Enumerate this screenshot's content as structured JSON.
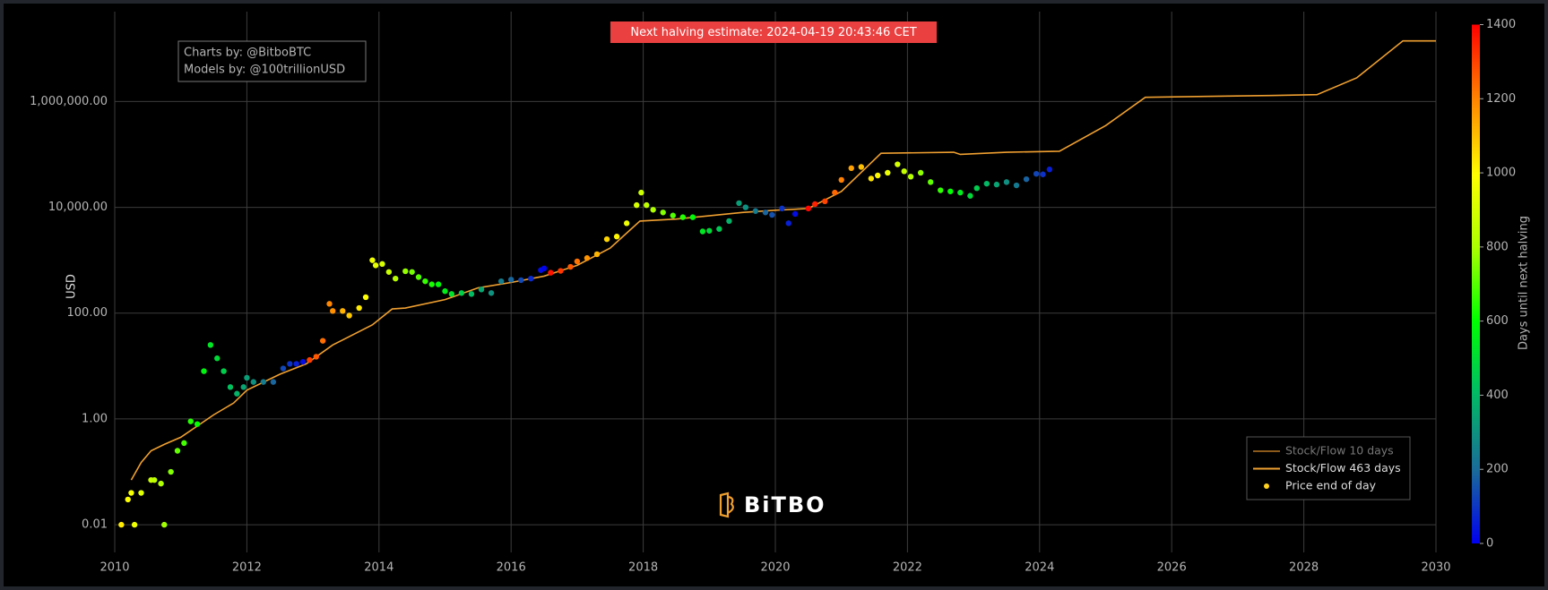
{
  "chart_data": {
    "type": "scatter",
    "annotation": "Next halving estimate: 2024-04-19 20:43:46 CET",
    "credits": [
      "Charts by: @BitboBTC",
      "Models by: @100trillionUSD"
    ],
    "logo": "BiTBO",
    "ylabel": "USD",
    "xlim": [
      2010,
      2030
    ],
    "xticks": [
      2010,
      2012,
      2014,
      2016,
      2018,
      2020,
      2022,
      2024,
      2026,
      2028,
      2030
    ],
    "ylim": [
      0.003,
      50000000
    ],
    "log_y": true,
    "yticks": [
      {
        "value": 0.01,
        "label": "0.01"
      },
      {
        "value": 1,
        "label": "1.00"
      },
      {
        "value": 100,
        "label": "100.00"
      },
      {
        "value": 10000,
        "label": "10,000.00"
      },
      {
        "value": 1000000,
        "label": "1,000,000.00"
      }
    ],
    "grid": true,
    "legend_position": "bottom-right",
    "colorbar": {
      "title": "Days until next halving",
      "clim": [
        0,
        1400
      ],
      "ticks": [
        0,
        200,
        400,
        600,
        800,
        1000,
        1200,
        1400
      ],
      "colorscale": [
        [
          0,
          "#0000ee"
        ],
        [
          0.14,
          "#1a6a9a"
        ],
        [
          0.3,
          "#00c060"
        ],
        [
          0.43,
          "#00ff00"
        ],
        [
          0.57,
          "#aaff00"
        ],
        [
          0.71,
          "#ffff00"
        ],
        [
          0.86,
          "#ff8000"
        ],
        [
          1,
          "#ff0000"
        ]
      ]
    },
    "series": [
      {
        "name": "Stock/Flow 10 days",
        "type": "line",
        "color": "#8b5a1a",
        "visible": false
      },
      {
        "name": "Stock/Flow 463 days",
        "type": "line",
        "color": "#f0a030",
        "x": [
          2010.25,
          2010.4,
          2010.55,
          2010.75,
          2011.0,
          2011.5,
          2011.8,
          2012.0,
          2012.5,
          2012.9,
          2013.3,
          2013.9,
          2014.2,
          2014.4,
          2015.0,
          2015.5,
          2016.0,
          2016.5,
          2017.0,
          2017.5,
          2017.95,
          2018.5,
          2019.5,
          2020.0,
          2020.5,
          2021.0,
          2021.6,
          2022.7,
          2022.8,
          2023.5,
          2024.3,
          2025.0,
          2025.6,
          2026.5,
          2027.5,
          2028.2,
          2028.8,
          2029.5,
          2030.0
        ],
        "values": [
          0.07,
          0.15,
          0.25,
          0.33,
          0.45,
          1.2,
          2,
          3.5,
          7,
          11,
          25,
          60,
          120,
          125,
          180,
          300,
          380,
          500,
          800,
          1700,
          5500,
          6000,
          8000,
          8800,
          9500,
          20000,
          105000,
          110000,
          100000,
          110000,
          115000,
          350000,
          1200000,
          1250000,
          1300000,
          1350000,
          2800000,
          14000000,
          14000000
        ]
      },
      {
        "name": "Price end of day",
        "type": "scatter",
        "color": "#ffd21f",
        "x": [
          2010.1,
          2010.2,
          2010.25,
          2010.3,
          2010.4,
          2010.55,
          2010.6,
          2010.7,
          2010.75,
          2010.85,
          2010.95,
          2011.05,
          2011.15,
          2011.25,
          2011.35,
          2011.45,
          2011.55,
          2011.65,
          2011.75,
          2011.85,
          2011.95,
          2012.0,
          2012.1,
          2012.25,
          2012.4,
          2012.55,
          2012.65,
          2012.75,
          2012.85,
          2012.95,
          2013.05,
          2013.15,
          2013.25,
          2013.3,
          2013.45,
          2013.55,
          2013.7,
          2013.8,
          2013.9,
          2013.95,
          2014.05,
          2014.15,
          2014.25,
          2014.4,
          2014.5,
          2014.6,
          2014.7,
          2014.8,
          2014.9,
          2015.0,
          2015.1,
          2015.25,
          2015.4,
          2015.55,
          2015.7,
          2015.85,
          2016.0,
          2016.15,
          2016.3,
          2016.45,
          2016.5,
          2016.6,
          2016.75,
          2016.9,
          2017.0,
          2017.15,
          2017.3,
          2017.45,
          2017.6,
          2017.75,
          2017.9,
          2017.97,
          2018.05,
          2018.15,
          2018.3,
          2018.45,
          2018.6,
          2018.75,
          2018.9,
          2019.0,
          2019.15,
          2019.3,
          2019.45,
          2019.55,
          2019.7,
          2019.85,
          2019.95,
          2020.1,
          2020.2,
          2020.3,
          2020.5,
          2020.6,
          2020.75,
          2020.9,
          2021.0,
          2021.15,
          2021.3,
          2021.45,
          2021.55,
          2021.7,
          2021.85,
          2021.95,
          2022.05,
          2022.2,
          2022.35,
          2022.5,
          2022.65,
          2022.8,
          2022.95,
          2023.05,
          2023.2,
          2023.35,
          2023.5,
          2023.65,
          2023.8,
          2023.95,
          2024.05,
          2024.15
        ],
        "values": [
          0.01,
          0.03,
          0.04,
          0.01,
          0.04,
          0.07,
          0.07,
          0.06,
          0.01,
          0.1,
          0.25,
          0.35,
          0.9,
          0.8,
          8,
          25,
          14,
          8,
          4,
          3,
          4,
          6,
          5,
          5,
          5,
          9,
          11,
          11,
          12,
          13,
          15,
          30,
          150,
          110,
          110,
          90,
          125,
          200,
          1000,
          800,
          850,
          600,
          450,
          620,
          600,
          480,
          400,
          350,
          350,
          260,
          230,
          240,
          230,
          280,
          240,
          400,
          430,
          420,
          450,
          650,
          700,
          580,
          630,
          750,
          950,
          1100,
          1300,
          2500,
          2800,
          5000,
          11000,
          19000,
          11000,
          9000,
          8000,
          7000,
          6500,
          6500,
          3500,
          3600,
          3900,
          5500,
          12000,
          10000,
          8500,
          8000,
          7200,
          9500,
          5000,
          7500,
          9500,
          11500,
          13000,
          19000,
          33000,
          55000,
          58000,
          35000,
          40000,
          45000,
          65000,
          48000,
          38000,
          45000,
          30000,
          21000,
          20000,
          19000,
          16500,
          23000,
          28000,
          27000,
          30000,
          26000,
          34000,
          43000,
          42000,
          52000
        ],
        "color_values": [
          1026,
          989,
          971,
          953,
          916,
          861,
          843,
          807,
          788,
          752,
          715,
          679,
          642,
          606,
          569,
          533,
          496,
          460,
          423,
          387,
          350,
          332,
          296,
          241,
          186,
          131,
          95,
          58,
          22,
          1303,
          1267,
          1231,
          1194,
          1176,
          1121,
          1084,
          1029,
          993,
          956,
          938,
          902,
          865,
          829,
          774,
          737,
          701,
          664,
          628,
          591,
          555,
          518,
          464,
          409,
          354,
          299,
          245,
          190,
          135,
          80,
          26,
          7,
          1372,
          1318,
          1263,
          1226,
          1172,
          1117,
          1062,
          1007,
          953,
          898,
          872,
          843,
          807,
          752,
          697,
          642,
          588,
          533,
          496,
          442,
          387,
          332,
          296,
          241,
          186,
          150,
          95,
          58,
          22,
          1387,
          1351,
          1296,
          1241,
          1204,
          1150,
          1095,
          1040,
          1004,
          949,
          894,
          858,
          821,
          767,
          712,
          657,
          602,
          548,
          493,
          456,
          402,
          347,
          292,
          237,
          183,
          128,
          91,
          55
        ]
      }
    ]
  }
}
